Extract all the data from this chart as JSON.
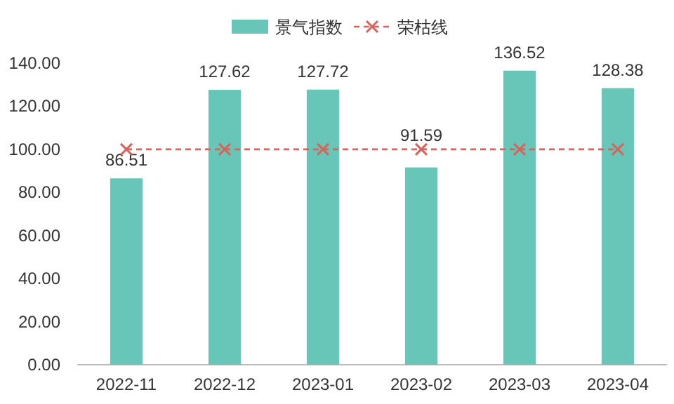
{
  "chart_data": {
    "type": "bar",
    "categories": [
      "2022-11",
      "2022-12",
      "2023-01",
      "2023-02",
      "2023-03",
      "2023-04"
    ],
    "series": [
      {
        "name": "景气指数",
        "type": "bar",
        "color": "#68c6b8",
        "values": [
          86.51,
          127.62,
          127.72,
          91.59,
          136.52,
          128.38
        ],
        "value_labels": [
          "86.51",
          "127.62",
          "127.72",
          "91.59",
          "136.52",
          "128.38"
        ]
      },
      {
        "name": "荣枯线",
        "type": "line",
        "color": "#d9625c",
        "values": [
          100,
          100,
          100,
          100,
          100,
          100
        ],
        "marker": "cross",
        "line_style": "dashed"
      }
    ],
    "ylim": [
      0,
      140
    ],
    "yticks": [
      {
        "value": 0,
        "label": "0.00"
      },
      {
        "value": 20,
        "label": "20.00"
      },
      {
        "value": 40,
        "label": "40.00"
      },
      {
        "value": 60,
        "label": "60.00"
      },
      {
        "value": 80,
        "label": "80.00"
      },
      {
        "value": 100,
        "label": "100.00"
      },
      {
        "value": 120,
        "label": "120.00"
      },
      {
        "value": 140,
        "label": "140.00"
      }
    ],
    "grid": false,
    "legend": "top"
  }
}
